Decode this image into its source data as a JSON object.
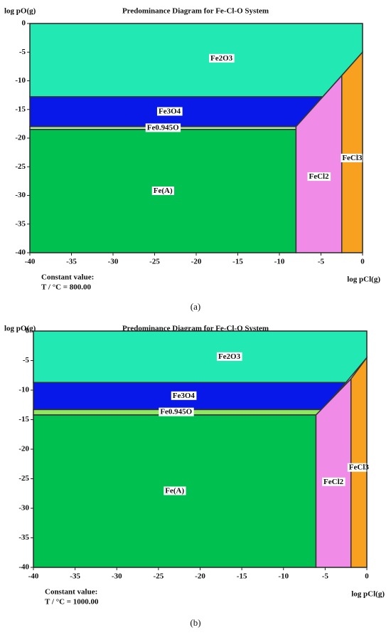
{
  "chart_data": [
    {
      "type": "area",
      "title": "Predominance Diagram for Fe-Cl-O System",
      "xlabel": "log pCl(g)",
      "ylabel": "log pO(g)",
      "annotations": [
        "Constant value:",
        "T / °C = 800.00"
      ],
      "caption": "(a)",
      "xlim": [
        -40,
        0
      ],
      "ylim": [
        -40,
        0
      ],
      "xticks": [
        -40,
        -35,
        -30,
        -25,
        -20,
        -15,
        -10,
        -5,
        0
      ],
      "yticks": [
        0,
        -5,
        -10,
        -15,
        -20,
        -25,
        -30,
        -35,
        -40
      ],
      "series": [
        {
          "name": "Fe2O3",
          "color": "#22e8b4",
          "x": [
            -40,
            0,
            0,
            -4.8,
            -40
          ],
          "values": [
            0,
            0,
            -5,
            -12.8,
            -12.8
          ]
        },
        {
          "name": "Fe3O4",
          "color": "#0818e8",
          "x": [
            -40,
            -4.8,
            -8,
            -40
          ],
          "values": [
            -12.8,
            -12.8,
            -18,
            -18
          ]
        },
        {
          "name": "Fe0.945O",
          "color": "#b8f0a0",
          "x": [
            -40,
            -8,
            -8,
            -40
          ],
          "values": [
            -18,
            -18,
            -18.5,
            -18.5
          ]
        },
        {
          "name": "Fe(A)",
          "color": "#00c050",
          "x": [
            -40,
            -8,
            -8,
            -40
          ],
          "values": [
            -18.5,
            -18.5,
            -40,
            -40
          ]
        },
        {
          "name": "FeCl2",
          "color": "#f08ce8",
          "x": [
            -8,
            -2.5,
            -2.5,
            -8
          ],
          "values": [
            -18,
            -9.1,
            -40,
            -40
          ]
        },
        {
          "name": "FeCl3",
          "color": "#f8a020",
          "x": [
            -2.5,
            0,
            0,
            -2.5
          ],
          "values": [
            -9.1,
            -5,
            -40,
            -40
          ]
        }
      ]
    },
    {
      "type": "area",
      "title": "Predominance Diagram for Fe-Cl-O System",
      "xlabel": "log pCl(g)",
      "ylabel": "log pO(g)",
      "annotations": [
        "Constant value:",
        "T / °C = 1000.00"
      ],
      "caption": "(b)",
      "xlim": [
        -40,
        0
      ],
      "ylim": [
        -40,
        0
      ],
      "xticks": [
        -40,
        -35,
        -30,
        -25,
        -20,
        -15,
        -10,
        -5,
        0
      ],
      "yticks": [
        0,
        -5,
        -10,
        -15,
        -20,
        -25,
        -30,
        -35,
        -40
      ],
      "series": [
        {
          "name": "Fe2O3",
          "color": "#22e8b4",
          "x": [
            -40,
            0,
            0,
            -2.5,
            -40
          ],
          "values": [
            0,
            0,
            -4.5,
            -8.7,
            -8.7
          ]
        },
        {
          "name": "Fe3O4",
          "color": "#0818e8",
          "x": [
            -40,
            -2.5,
            -5.4,
            -40
          ],
          "values": [
            -8.7,
            -8.7,
            -13.3,
            -13.3
          ]
        },
        {
          "name": "Fe0.945O",
          "color": "#90e860",
          "x": [
            -40,
            -5.4,
            -6.1,
            -40
          ],
          "values": [
            -13.3,
            -13.3,
            -14.2,
            -14.2
          ]
        },
        {
          "name": "Fe(A)",
          "color": "#00c050",
          "x": [
            -40,
            -6.1,
            -6.1,
            -40
          ],
          "values": [
            -14.2,
            -14.2,
            -40,
            -40
          ]
        },
        {
          "name": "FeCl2",
          "color": "#f08ce8",
          "x": [
            -6.1,
            -1.9,
            -1.9,
            -6.1
          ],
          "values": [
            -14.2,
            -8.1,
            -40,
            -40
          ]
        },
        {
          "name": "FeCl3",
          "color": "#f8a020",
          "x": [
            -1.9,
            0,
            0,
            -1.9
          ],
          "values": [
            -8.1,
            -4.5,
            -40,
            -40
          ]
        }
      ]
    }
  ]
}
